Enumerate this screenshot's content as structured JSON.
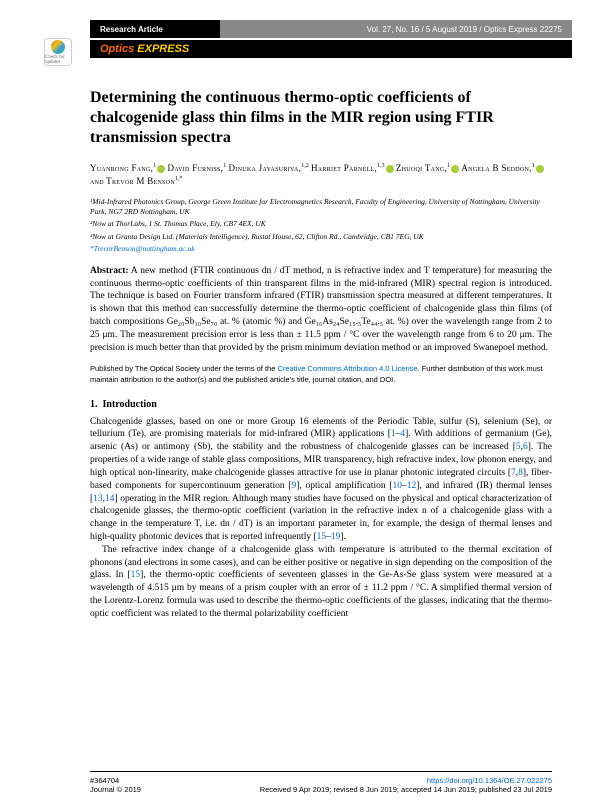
{
  "header": {
    "category": "Research Article",
    "issue_info": "Vol. 27, No. 16 / 5 August 2019 / Optics Express  22275",
    "journal_prefix": "Optics",
    "journal_suffix": "EXPRESS",
    "crossmark_label": "Check for updates"
  },
  "title": "Determining the continuous thermo-optic coefficients of chalcogenide glass thin films in the MIR region using FTIR transmission spectra",
  "authors": {
    "a1_name": "Yuanrong Fang,",
    "a1_sup": "1",
    "a2_name": "David Furniss,",
    "a2_sup": "1",
    "a3_name": "Dinuka Jayasuriya,",
    "a3_sup": "1,2",
    "a4_name": "Harriet Parnell,",
    "a4_sup": "1,3",
    "a5_name": "Zhuoqi Tang,",
    "a5_sup": "1",
    "a6_name": "Angela B Seddon,",
    "a6_sup": "1",
    "and": "and",
    "a7_name": "Trevor M Benson",
    "a7_sup": "1,*"
  },
  "affiliations": {
    "aff1": "¹Mid-Infrared Photonics Group, George Green Institute for Electromagnetics Research, Faculty of Engineering, University of Nottingham, University Park, NG7 2RD Nottingham, UK",
    "aff2": "²Now at ThorLabs, 1 St. Thomas Place, Ely, CB7 4EX, UK",
    "aff3": "³Now at Granta Design Ltd. (Materials Intelligence), Rustat House, 62, Clifton Rd., Cambridge, CB1 7EG, UK",
    "email": "*TrevorBenson@nottingham.ac.uk"
  },
  "abstract": {
    "label": "Abstract:",
    "text": " A new method (FTIR continuous dn / dT method, n is refractive index and T temperature) for measuring the continuous thermo-optic coefficients of thin transparent films in the mid-infrared (MIR) spectral region is introduced. The technique is based on Fourier transform infrared (FTIR) transmission spectra measured at different temperatures. It is shown that this method can successfully determine the thermo-optic coefficient of chalcogenide glass thin films (of batch compositions Ge₂₀Sb₁₀Se₇₀ at. % (atomic %) and Ge₁₆As₂₄Se₁₅.₅Te₄₄.₅ at. %) over the wavelength range from 2 to 25 μm. The measurement precision error is less than ± 11.5 ppm / °C over the wavelength range from 6 to 20 μm. The precision is much better than that provided by the prism minimum deviation method or an improved Swanepoel method."
  },
  "license": {
    "prefix": "Published by The Optical Society under the terms of the ",
    "link_text": "Creative Commons Attribution 4.0 License",
    "suffix": ". Further distribution of this work must maintain attribution to the author(s) and the published article's title, journal citation, and DOI."
  },
  "section": {
    "number": "1.",
    "title": "Introduction"
  },
  "body": {
    "p1_a": "Chalcogenide glasses, based on one or more Group 16 elements of the Periodic Table, sulfur (S), selenium (Se), or tellurium (Te), are promising materials for mid-infrared (MIR) applications [",
    "p1_r1": "1",
    "p1_dash1": "–",
    "p1_r2": "4",
    "p1_b": "]. With additions of germanium (Ge), arsenic (As) or antimony (Sb), the stability and the robustness of chalcogenide glasses can be increased [",
    "p1_r3": "5",
    "p1_c1": ",",
    "p1_r4": "6",
    "p1_c": "]. The properties of a wide range of stable glass compositions, MIR transparency, high refractive index, low phonon energy, and high optical non-linearity, make chalcogenide glasses attractive for use in planar photonic integrated circuits [",
    "p1_r5": "7",
    "p1_c2": ",",
    "p1_r6": "8",
    "p1_d": "], fiber-based components for supercontinuum generation [",
    "p1_r7": "9",
    "p1_e": "], optical amplification [",
    "p1_r8": "10",
    "p1_dash2": "–",
    "p1_r9": "12",
    "p1_f": "], and infrared (IR) thermal lenses [",
    "p1_r10": "13",
    "p1_c3": ",",
    "p1_r11": "14",
    "p1_g": "] operating in the MIR region. Although many studies have focused on the physical and optical characterization of chalcogenide glasses, the thermo-optic coefficient (variation in the refractive index n of a chalcogenide glass with a change in the temperature T, i.e. dn / dT) is an important parameter in, for example, the design of thermal lenses and high-quality photonic devices that is reported infrequently [",
    "p1_r12": "15",
    "p1_dash3": "–",
    "p1_r13": "19",
    "p1_h": "].",
    "p2_a": "The refractive index change of a chalcogenide glass with temperature is attributed to the thermal excitation of phonons (and electrons in some cases), and can be either positive or negative in sign depending on the composition of the glass. In [",
    "p2_r1": "15",
    "p2_b": "], the thermo-optic coefficients of seventeen glasses in the Ge-As-Se glass system were measured at a wavelength of 4.515 μm by means of a prism coupler with an error of ± 11.2 ppm / °C. A simplified thermal version of the Lorentz-Lorenz formula was used to describe the thermo-optic coefficients of the glasses, indicating that the thermo-optic coefficient was related to the thermal polarizability coefficient"
  },
  "footer": {
    "article_id": "#364704",
    "copyright": "Journal © 2019",
    "doi_url": "https://doi.org/10.1364/OE.27.022275",
    "dates": "Received 9 Apr 2019; revised 8 Jun 2019; accepted 14 Jun 2019; published 23 Jul 2019"
  },
  "colors": {
    "link": "#0066cc",
    "orange": "#ff6600",
    "yellow": "#ffcc00",
    "orcid": "#a6ce39",
    "header_gray": "#888888"
  }
}
